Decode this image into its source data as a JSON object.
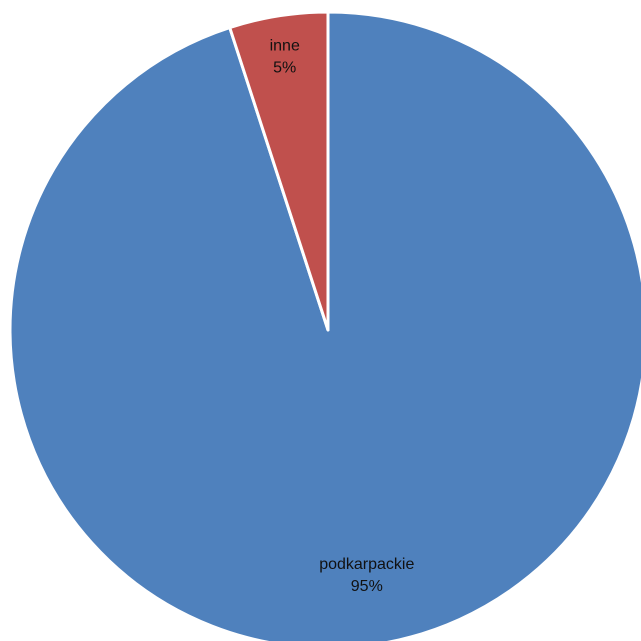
{
  "chart_data": {
    "type": "pie",
    "slices": [
      {
        "label": "podkarpackie",
        "value": 95,
        "display": "95%",
        "color": "#4F81BD"
      },
      {
        "label": "inne",
        "value": 5,
        "display": "5%",
        "color": "#C0504D"
      }
    ],
    "start": "top",
    "direction": "clockwise",
    "slice_separator_color": "#ffffff"
  }
}
